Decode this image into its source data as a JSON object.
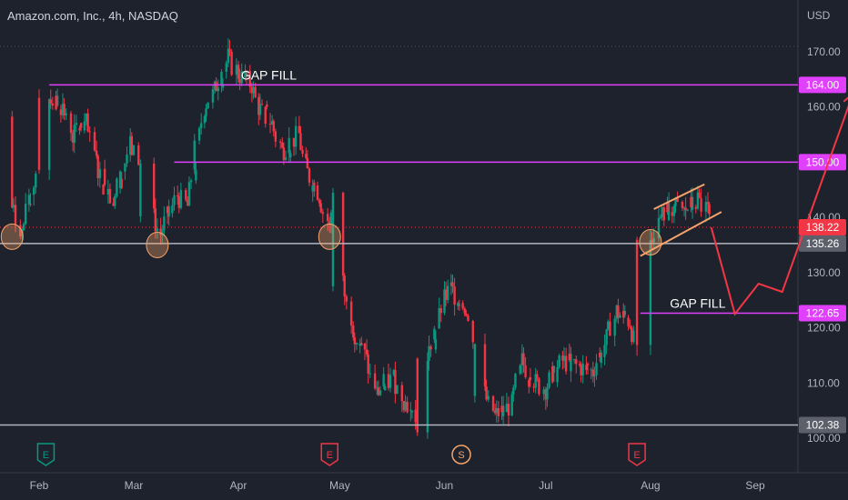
{
  "header": {
    "title": "Amazon.com, Inc., 4h, NASDAQ"
  },
  "price_axis": {
    "currency": "USD"
  },
  "colors": {
    "background": "#1e222d",
    "up": "#089981",
    "down": "#f23645",
    "magenta": "#e040fb",
    "support": "#b2b5be",
    "wedge": "#f5a26b",
    "projection": "#f23645"
  },
  "chart_data": {
    "type": "candlestick",
    "title": "Amazon.com, Inc., 4h, NASDAQ",
    "ylabel": "USD",
    "ylim": [
      97,
      175
    ],
    "y_ticks": [
      100,
      110,
      120,
      130,
      140,
      150,
      160,
      170
    ],
    "y_tick_labels": [
      "100.00",
      "110.00",
      "120.00",
      "130.00",
      "140.00",
      "150.00",
      "160.00",
      "170.00"
    ],
    "x_ticks": [
      "Feb",
      "Mar",
      "Apr",
      "May",
      "Jun",
      "Jul",
      "Aug",
      "Sep"
    ],
    "grid": false,
    "price_path": [
      [
        "2022-01-20",
        158
      ],
      [
        "2022-01-24",
        142
      ],
      [
        "2022-01-27",
        137
      ],
      [
        "2022-02-01",
        150
      ],
      [
        "2022-02-04",
        162
      ],
      [
        "2022-02-08",
        160
      ],
      [
        "2022-02-11",
        155
      ],
      [
        "2022-02-15",
        157
      ],
      [
        "2022-02-18",
        150
      ],
      [
        "2022-02-23",
        143
      ],
      [
        "2022-02-28",
        153
      ],
      [
        "2022-03-03",
        150
      ],
      [
        "2022-03-07",
        140
      ],
      [
        "2022-03-09",
        137
      ],
      [
        "2022-03-14",
        144
      ],
      [
        "2022-03-17",
        142
      ],
      [
        "2022-03-22",
        160
      ],
      [
        "2022-03-25",
        163
      ],
      [
        "2022-03-29",
        169
      ],
      [
        "2022-04-01",
        166
      ],
      [
        "2022-04-05",
        164
      ],
      [
        "2022-04-07",
        160
      ],
      [
        "2022-04-11",
        157
      ],
      [
        "2022-04-14",
        152
      ],
      [
        "2022-04-19",
        155
      ],
      [
        "2022-04-21",
        149
      ],
      [
        "2022-04-25",
        144
      ],
      [
        "2022-04-28",
        138
      ],
      [
        "2022-04-29",
        144
      ],
      [
        "2022-05-02",
        128
      ],
      [
        "2022-05-05",
        120
      ],
      [
        "2022-05-09",
        114
      ],
      [
        "2022-05-12",
        108
      ],
      [
        "2022-05-17",
        111
      ],
      [
        "2022-05-20",
        107
      ],
      [
        "2022-05-24",
        103
      ],
      [
        "2022-05-27",
        114
      ],
      [
        "2022-06-01",
        125
      ],
      [
        "2022-06-03",
        127
      ],
      [
        "2022-06-07",
        124
      ],
      [
        "2022-06-10",
        117
      ],
      [
        "2022-06-13",
        108
      ],
      [
        "2022-06-16",
        104
      ],
      [
        "2022-06-21",
        106
      ],
      [
        "2022-06-24",
        114
      ],
      [
        "2022-06-28",
        110
      ],
      [
        "2022-07-01",
        109
      ],
      [
        "2022-07-06",
        114
      ],
      [
        "2022-07-11",
        113
      ],
      [
        "2022-07-15",
        112
      ],
      [
        "2022-07-19",
        118
      ],
      [
        "2022-07-22",
        123
      ],
      [
        "2022-07-26",
        121
      ],
      [
        "2022-07-28",
        116
      ],
      [
        "2022-08-01",
        136
      ],
      [
        "2022-08-04",
        140
      ],
      [
        "2022-08-08",
        142
      ],
      [
        "2022-08-11",
        141
      ],
      [
        "2022-08-15",
        143
      ],
      [
        "2022-08-18",
        141
      ],
      [
        "2022-08-19",
        138
      ]
    ],
    "horizontal_levels": [
      {
        "value": 164.0,
        "label": "164.00",
        "role": "gap-fill"
      },
      {
        "value": 150.0,
        "label": "150.00",
        "role": "resistance"
      },
      {
        "value": 138.22,
        "label": "138.22",
        "role": "last-price"
      },
      {
        "value": 135.26,
        "label": "135.26",
        "role": "support"
      },
      {
        "value": 122.65,
        "label": "122.65",
        "role": "gap-fill"
      },
      {
        "value": 102.38,
        "label": "102.38",
        "role": "support"
      }
    ],
    "annotations": [
      {
        "text": "GAP FILL",
        "level": 164.0
      },
      {
        "text": "GAP FILL",
        "level": 122.65
      }
    ],
    "wedge": {
      "upper": [
        [
          "2022-08-02",
          141.5
        ],
        [
          "2022-08-17",
          146.0
        ]
      ],
      "lower": [
        [
          "2022-07-29",
          133.0
        ],
        [
          "2022-08-22",
          141.0
        ]
      ]
    },
    "support_touches": [
      [
        "2022-01-24",
        136.5
      ],
      [
        "2022-03-08",
        135.0
      ],
      [
        "2022-04-28",
        136.5
      ],
      [
        "2022-08-01",
        135.5
      ]
    ],
    "projection": [
      [
        "2022-08-19",
        138.2
      ],
      [
        "2022-08-26",
        122.5
      ],
      [
        "2022-09-02",
        128.0
      ],
      [
        "2022-09-09",
        126.5
      ],
      [
        "2022-09-30",
        162.5
      ]
    ],
    "events": [
      {
        "symbol": "E",
        "kind": "earnings",
        "date": "2022-02-03"
      },
      {
        "symbol": "E",
        "kind": "earnings",
        "date": "2022-04-28"
      },
      {
        "symbol": "S",
        "kind": "split",
        "date": "2022-06-06"
      },
      {
        "symbol": "E",
        "kind": "earnings",
        "date": "2022-07-28"
      }
    ]
  }
}
